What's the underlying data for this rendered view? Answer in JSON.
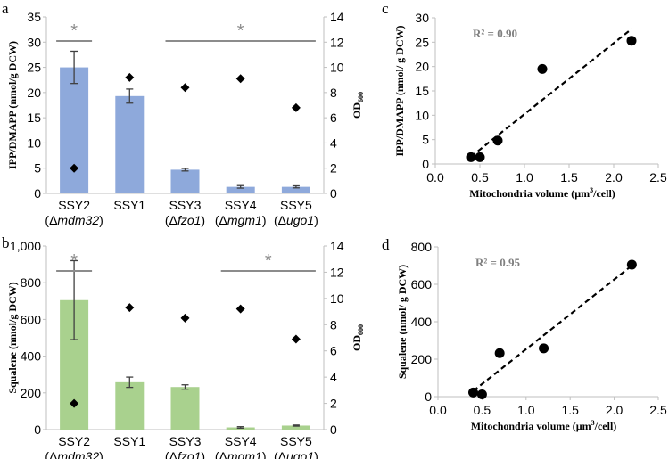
{
  "panel_labels": {
    "a": "a",
    "b": "b",
    "c": "c",
    "d": "d"
  },
  "colors": {
    "bar_a": "#8EA9DB",
    "bar_b": "#A9D18E",
    "axis": "#bfbfbf",
    "text": "#000000",
    "sig": "#8c8c8c",
    "r2_text": "#7f7f7f"
  },
  "chart_data": [
    {
      "id": "a",
      "type": "bar",
      "ylabel": "IPP/DMAPP  (nmol/g DCW)",
      "y2label_main": "OD",
      "y2label_sub": "600",
      "categories": [
        {
          "name": "SSY2",
          "sub_open": "(Δ",
          "sub_gene": "mdm32",
          "sub_close": ")"
        },
        {
          "name": "SSY1",
          "sub_open": "",
          "sub_gene": "",
          "sub_close": ""
        },
        {
          "name": "SSY3",
          "sub_open": "(Δ",
          "sub_gene": "fzo1",
          "sub_close": ")"
        },
        {
          "name": "SSY4",
          "sub_open": "(Δ",
          "sub_gene": "mgm1",
          "sub_close": ")"
        },
        {
          "name": "SSY5",
          "sub_open": "(Δ",
          "sub_gene": "ugo1",
          "sub_close": ")"
        }
      ],
      "values": [
        25.0,
        19.3,
        4.7,
        1.3,
        1.3
      ],
      "errors": [
        3.2,
        1.4,
        0.25,
        0.25,
        0.2
      ],
      "od_values": [
        2.0,
        9.2,
        8.4,
        9.1,
        6.8
      ],
      "ylim": [
        0,
        35
      ],
      "yticks": [
        "0",
        "5",
        "10",
        "15",
        "20",
        "25",
        "30",
        "35"
      ],
      "y2lim": [
        0,
        14
      ],
      "y2ticks": [
        "0",
        "2",
        "4",
        "6",
        "8",
        "10",
        "12",
        "14"
      ],
      "significance": [
        {
          "label": "*",
          "from": 0,
          "to": 0
        },
        {
          "label": "*",
          "from": 2,
          "to": 4
        }
      ]
    },
    {
      "id": "b",
      "type": "bar",
      "ylabel": "Squalene  (nmol/g DCW)",
      "y2label_main": "OD",
      "y2label_sub": "600",
      "categories": [
        {
          "name": "SSY2",
          "sub_open": "(Δ",
          "sub_gene": "mdm32",
          "sub_close": ")"
        },
        {
          "name": "SSY1",
          "sub_open": "",
          "sub_gene": "",
          "sub_close": ""
        },
        {
          "name": "SSY3",
          "sub_open": "(Δ",
          "sub_gene": "fzo1",
          "sub_close": ")"
        },
        {
          "name": "SSY4",
          "sub_open": "(Δ",
          "sub_gene": "mgm1",
          "sub_close": ")"
        },
        {
          "name": "SSY5",
          "sub_open": "(Δ",
          "sub_gene": "ugo1",
          "sub_close": ")"
        }
      ],
      "values": [
        705,
        258,
        232,
        12,
        22
      ],
      "errors": [
        215,
        28,
        12,
        4,
        3
      ],
      "od_values": [
        2.0,
        9.3,
        8.5,
        9.2,
        6.9
      ],
      "ylim": [
        0,
        1000
      ],
      "yticks": [
        "0",
        "200",
        "400",
        "600",
        "800",
        "1,000"
      ],
      "y2lim": [
        0,
        14
      ],
      "y2ticks": [
        "0",
        "2",
        "4",
        "6",
        "8",
        "10",
        "12",
        "14"
      ],
      "significance": [
        {
          "label": "*",
          "from": 0,
          "to": 0
        },
        {
          "label": "*",
          "from": 3,
          "to": 4
        }
      ]
    },
    {
      "id": "c",
      "type": "scatter",
      "xlabel_main": "Mitochondria volume (µm",
      "xlabel_sup": "3",
      "xlabel_end": "/cell)",
      "ylabel": "IPP/DMAPP  (nmol/ g DCW)",
      "annotation": "R² = 0.90",
      "x": [
        0.4,
        0.5,
        0.7,
        1.2,
        2.2
      ],
      "y": [
        1.4,
        1.4,
        4.8,
        19.5,
        25.3
      ],
      "trendline": {
        "x1": 0.4,
        "y1": 1.5,
        "x2": 2.2,
        "y2": 27.7
      },
      "xlim": [
        0,
        2.5
      ],
      "xticks": [
        "0.0",
        "0.5",
        "1.0",
        "1.5",
        "2.0",
        "2.5"
      ],
      "ylim": [
        0,
        30
      ],
      "yticks": [
        "0",
        "5",
        "10",
        "15",
        "20",
        "25",
        "30"
      ]
    },
    {
      "id": "d",
      "type": "scatter",
      "xlabel_main": "Mitochondria volume (µm",
      "xlabel_sup": "3",
      "xlabel_end": "/cell)",
      "ylabel": "Squalene   (nmol/ g DCW)",
      "annotation": "R² = 0.95",
      "x": [
        0.4,
        0.5,
        0.7,
        1.2,
        2.2
      ],
      "y": [
        22,
        12,
        232,
        258,
        705
      ],
      "trendline": {
        "x1": 0.4,
        "y1": 30,
        "x2": 2.2,
        "y2": 700
      },
      "xlim": [
        0,
        2.5
      ],
      "xticks": [
        "0.0",
        "0.5",
        "1.0",
        "1.5",
        "2.0",
        "2.5"
      ],
      "ylim": [
        0,
        800
      ],
      "yticks": [
        "0",
        "200",
        "400",
        "600",
        "800"
      ]
    }
  ]
}
